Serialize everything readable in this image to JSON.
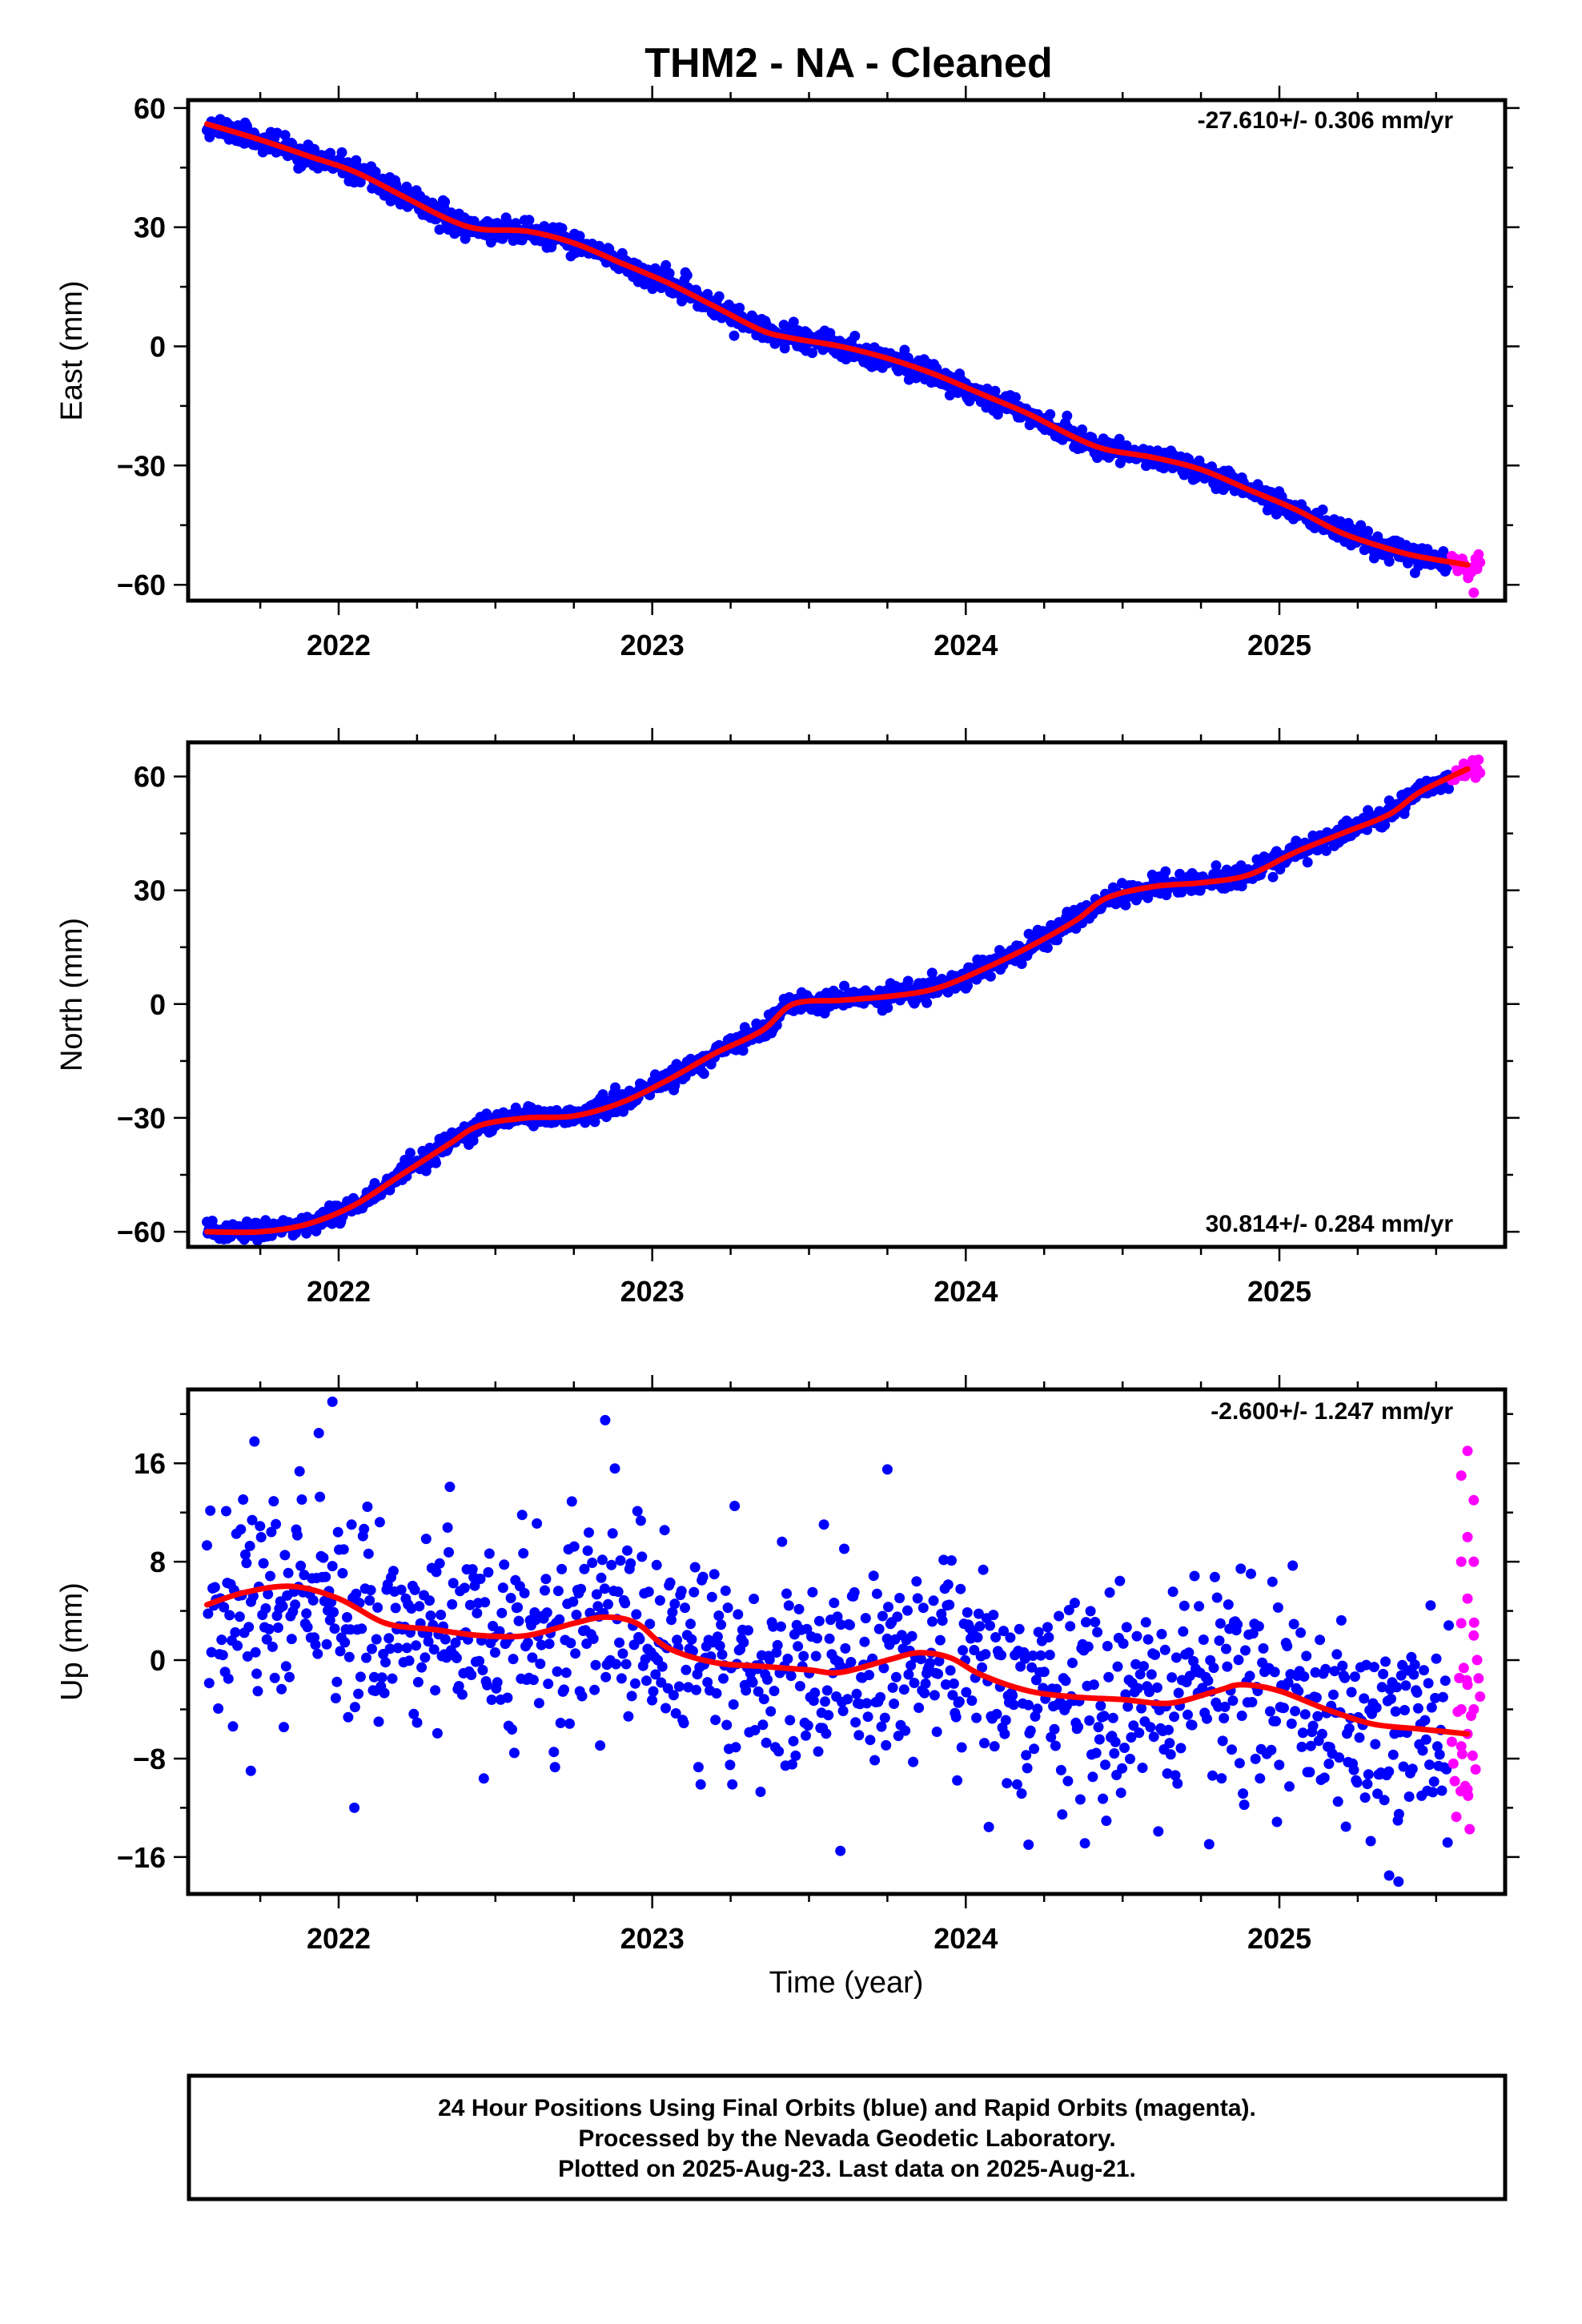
{
  "title": "THM2  - NA - Cleaned",
  "xlabel": "Time (year)",
  "footnote": [
    "24 Hour Positions Using Final Orbits (blue) and Rapid Orbits (magenta).",
    "Processed by the Nevada Geodetic Laboratory.",
    "Plotted on 2025-Aug-23. Last data on 2025-Aug-21."
  ],
  "colors": {
    "final_orbits": "#0000ff",
    "rapid_orbits": "#ff00ff",
    "model_fit": "#ff0000"
  },
  "chart_data": [
    {
      "type": "scatter",
      "ylabel": "East (mm)",
      "rate_label": "-27.610+/- 0.306 mm/yr",
      "rate_label_position": "top-right",
      "xlim": [
        2021.52,
        2025.72
      ],
      "ylim": [
        -64,
        62
      ],
      "x_ticks": [
        2022,
        2023,
        2024,
        2025
      ],
      "y_ticks": [
        -60,
        -30,
        0,
        30,
        60
      ],
      "grid": false,
      "model_fit": {
        "x": [
          2021.58,
          2021.75,
          2021.9,
          2022.05,
          2022.2,
          2022.35,
          2022.45,
          2022.6,
          2022.75,
          2022.9,
          2023.05,
          2023.2,
          2023.35,
          2023.45,
          2023.6,
          2023.75,
          2023.9,
          2024.05,
          2024.2,
          2024.35,
          2024.45,
          2024.6,
          2024.75,
          2024.9,
          2025.05,
          2025.2,
          2025.35,
          2025.45,
          2025.6
        ],
        "y": [
          56,
          52,
          48,
          44,
          38,
          32,
          29.5,
          29,
          26,
          21,
          16,
          10,
          4,
          2,
          0,
          -3,
          -7,
          -12,
          -17,
          -23,
          -26,
          -28,
          -31,
          -36,
          -41,
          -47,
          -51,
          -53,
          -55
        ]
      },
      "series": [
        {
          "name": "Final Orbits",
          "color": "#0000ff",
          "start": 2021.58,
          "end": 2025.54,
          "count": 1400,
          "scatter_sd_mm": 1.4
        },
        {
          "name": "Rapid Orbits",
          "color": "#ff00ff",
          "start": 2025.55,
          "end": 2025.64,
          "count": 20,
          "points": [
            [
              2025.62,
              -62
            ]
          ]
        }
      ]
    },
    {
      "type": "scatter",
      "ylabel": "North (mm)",
      "rate_label": "30.814+/- 0.284 mm/yr",
      "rate_label_position": "bottom-right",
      "xlim": [
        2021.52,
        2025.72
      ],
      "ylim": [
        -64,
        69
      ],
      "x_ticks": [
        2022,
        2023,
        2024,
        2025
      ],
      "y_ticks": [
        -60,
        -30,
        0,
        30,
        60
      ],
      "grid": false,
      "model_fit": {
        "x": [
          2021.58,
          2021.75,
          2021.9,
          2022.05,
          2022.2,
          2022.35,
          2022.45,
          2022.6,
          2022.75,
          2022.9,
          2023.05,
          2023.2,
          2023.35,
          2023.45,
          2023.6,
          2023.75,
          2023.9,
          2024.05,
          2024.2,
          2024.35,
          2024.45,
          2024.6,
          2024.75,
          2024.9,
          2025.05,
          2025.2,
          2025.35,
          2025.45,
          2025.6
        ],
        "y": [
          -60,
          -60,
          -58,
          -53,
          -45,
          -37,
          -32,
          -30,
          -29.5,
          -26,
          -20,
          -13,
          -7,
          0,
          1,
          2,
          4,
          9,
          15,
          22,
          28,
          31,
          32,
          34,
          40,
          45,
          50,
          56,
          62
        ]
      },
      "series": [
        {
          "name": "Final Orbits",
          "color": "#0000ff",
          "start": 2021.58,
          "end": 2025.54,
          "count": 1400,
          "scatter_sd_mm": 1.3
        },
        {
          "name": "Rapid Orbits",
          "color": "#ff00ff",
          "start": 2025.55,
          "end": 2025.64,
          "count": 20
        }
      ]
    },
    {
      "type": "scatter",
      "ylabel": "Up (mm)",
      "rate_label": "-2.600+/- 1.247 mm/yr",
      "rate_label_position": "top-right",
      "xlim": [
        2021.52,
        2025.72
      ],
      "ylim": [
        -19,
        22
      ],
      "x_ticks": [
        2022,
        2023,
        2024,
        2025
      ],
      "y_ticks": [
        -16,
        -8,
        0,
        8,
        16
      ],
      "grid": false,
      "model_fit": {
        "x": [
          2021.58,
          2021.7,
          2021.85,
          2022.0,
          2022.15,
          2022.3,
          2022.45,
          2022.6,
          2022.75,
          2022.85,
          2022.95,
          2023.05,
          2023.2,
          2023.35,
          2023.5,
          2023.6,
          2023.75,
          2023.85,
          2023.95,
          2024.05,
          2024.2,
          2024.35,
          2024.5,
          2024.65,
          2024.8,
          2024.88,
          2025.0,
          2025.15,
          2025.3,
          2025.45,
          2025.6
        ],
        "y": [
          4.5,
          5.5,
          6,
          5,
          3,
          2.5,
          2,
          2,
          3,
          3.5,
          3,
          1,
          -0.2,
          -0.5,
          -0.8,
          -1,
          0,
          0.6,
          0.2,
          -1.2,
          -2.5,
          -3,
          -3.2,
          -3.5,
          -2.5,
          -2,
          -2.5,
          -4,
          -5.2,
          -5.6,
          -6
        ]
      },
      "series": [
        {
          "name": "Final Orbits",
          "color": "#0000ff",
          "start": 2021.58,
          "end": 2025.54,
          "count": 1100,
          "scatter_sd_mm": 4.2,
          "points": [
            [
              2021.98,
              21
            ],
            [
              2022.85,
              19.5
            ],
            [
              2023.75,
              15.5
            ],
            [
              2025.35,
              -17.5
            ],
            [
              2025.38,
              -18
            ],
            [
              2023.6,
              -15.5
            ],
            [
              2024.2,
              -15
            ],
            [
              2021.72,
              -9
            ],
            [
              2022.05,
              -12
            ]
          ]
        },
        {
          "name": "Rapid Orbits",
          "color": "#ff00ff",
          "start": 2025.55,
          "end": 2025.64,
          "count": 20,
          "points": [
            [
              2025.6,
              17
            ],
            [
              2025.58,
              15
            ],
            [
              2025.62,
              13
            ],
            [
              2025.6,
              10
            ],
            [
              2025.58,
              8
            ],
            [
              2025.62,
              8
            ],
            [
              2025.6,
              5
            ],
            [
              2025.58,
              3
            ],
            [
              2025.62,
              2
            ],
            [
              2025.6,
              -2
            ],
            [
              2025.58,
              -4
            ],
            [
              2025.62,
              -4
            ],
            [
              2025.6,
              -6
            ],
            [
              2025.58,
              -7
            ],
            [
              2025.6,
              -10.5
            ]
          ]
        }
      ]
    }
  ]
}
